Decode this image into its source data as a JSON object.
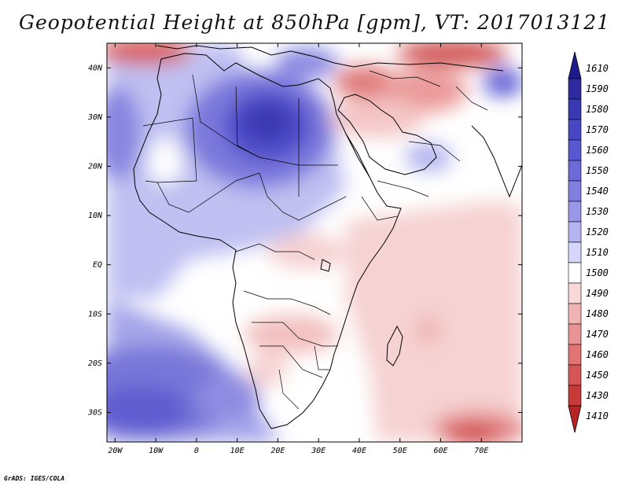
{
  "title": "Geopotential Height at 850hPa [gpm], VT: 2017013121",
  "lat_labels": [
    "40N",
    "30N",
    "20N",
    "10N",
    "EQ",
    "10S",
    "20S",
    "30S"
  ],
  "lat_values": [
    40,
    30,
    20,
    10,
    0,
    -10,
    -20,
    -30
  ],
  "lon_labels": [
    "20W",
    "10W",
    "0",
    "10E",
    "20E",
    "30E",
    "40E",
    "50E",
    "60E",
    "70E"
  ],
  "lon_values": [
    -20,
    -10,
    0,
    10,
    20,
    30,
    40,
    50,
    60,
    70
  ],
  "map_extent": {
    "lon_min": -22,
    "lon_max": 80,
    "lat_min": -36,
    "lat_max": 45
  },
  "colorbar": {
    "levels": [
      "1610",
      "1590",
      "1580",
      "1570",
      "1560",
      "1550",
      "1540",
      "1530",
      "1520",
      "1510",
      "1500",
      "1490",
      "1480",
      "1470",
      "1460",
      "1450",
      "1430",
      "1410"
    ],
    "colors": [
      "#1e1b8c",
      "#2d2aa0",
      "#3b38b4",
      "#4a47c4",
      "#5a58d0",
      "#6c6ad8",
      "#8180e0",
      "#9998e8",
      "#b4b4f0",
      "#d6d6fa",
      "#ffffff",
      "#f8d8d8",
      "#f0b4b4",
      "#e89494",
      "#e07474",
      "#d65656",
      "#c83a3a",
      "#b82424"
    ]
  },
  "credit": "GrADS: IGES/COLA"
}
